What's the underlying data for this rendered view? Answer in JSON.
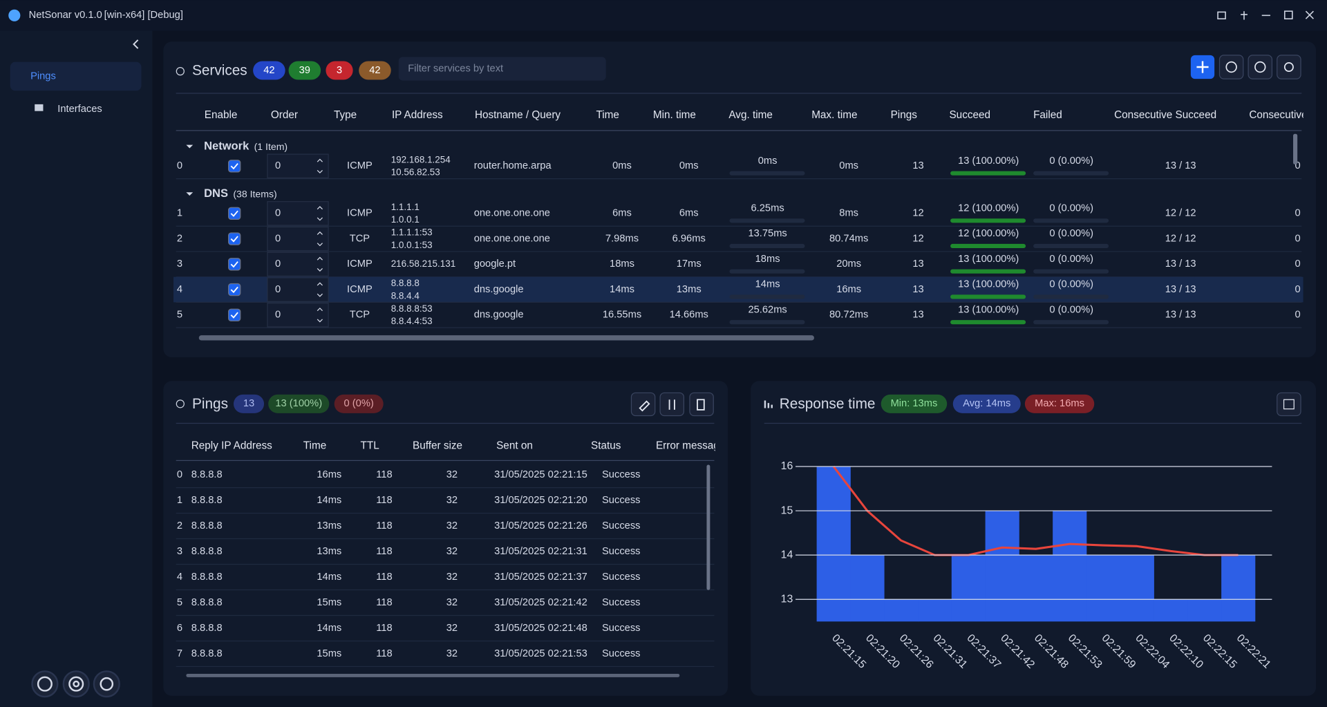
{
  "window": {
    "title": "NetSonar v0.1.0",
    "build": "[win-x64] [Debug]"
  },
  "sidebar": {
    "items": [
      "Pings",
      "Interfaces"
    ]
  },
  "services": {
    "title": "Services",
    "badges": [
      "42",
      "39",
      "3",
      "42"
    ],
    "filter_placeholder": "Filter services by text",
    "columns": [
      "Enable",
      "Order",
      "Type",
      "IP Address",
      "Hostname / Query",
      "Time",
      "Min. time",
      "Avg. time",
      "Max. time",
      "Pings",
      "Succeed",
      "Failed",
      "Consecutive Succeed",
      "Consecutive"
    ],
    "groups": [
      {
        "name": "Network",
        "count": "(1 Item)",
        "rows": [
          {
            "index": "0",
            "enabled": true,
            "order": "0",
            "type": "ICMP",
            "ip": [
              "192.168.1.254",
              "10.56.82.53"
            ],
            "host": "router.home.arpa",
            "time": "0ms",
            "min": "0ms",
            "avg": "0ms",
            "max": "0ms",
            "pings": "13",
            "succeed": "13 (100.00%)",
            "failed": "0 (0.00%)",
            "consecutive_succeed": "13 / 13",
            "consecutive": "0"
          }
        ]
      },
      {
        "name": "DNS",
        "count": "(38 Items)",
        "rows": [
          {
            "index": "1",
            "enabled": true,
            "order": "0",
            "type": "ICMP",
            "ip": [
              "1.1.1.1",
              "1.0.0.1"
            ],
            "host": "one.one.one.one",
            "time": "6ms",
            "min": "6ms",
            "avg": "6.25ms",
            "max": "8ms",
            "pings": "12",
            "succeed": "12 (100.00%)",
            "failed": "0 (0.00%)",
            "consecutive_succeed": "12 / 12",
            "consecutive": "0"
          },
          {
            "index": "2",
            "enabled": true,
            "order": "0",
            "type": "TCP",
            "ip": [
              "1.1.1.1:53",
              "1.0.0.1:53"
            ],
            "host": "one.one.one.one",
            "time": "7.98ms",
            "min": "6.96ms",
            "avg": "13.75ms",
            "max": "80.74ms",
            "pings": "12",
            "succeed": "12 (100.00%)",
            "failed": "0 (0.00%)",
            "consecutive_succeed": "12 / 12",
            "consecutive": "0"
          },
          {
            "index": "3",
            "enabled": true,
            "order": "0",
            "type": "ICMP",
            "ip": [
              "216.58.215.131"
            ],
            "host": "google.pt",
            "time": "18ms",
            "min": "17ms",
            "avg": "18ms",
            "max": "20ms",
            "pings": "13",
            "succeed": "13 (100.00%)",
            "failed": "0 (0.00%)",
            "consecutive_succeed": "13 / 13",
            "consecutive": "0"
          },
          {
            "index": "4",
            "enabled": true,
            "order": "0",
            "type": "ICMP",
            "ip": [
              "8.8.8.8",
              "8.8.4.4"
            ],
            "host": "dns.google",
            "time": "14ms",
            "min": "13ms",
            "avg": "14ms",
            "max": "16ms",
            "pings": "13",
            "succeed": "13 (100.00%)",
            "failed": "0 (0.00%)",
            "consecutive_succeed": "13 / 13",
            "consecutive": "0"
          },
          {
            "index": "5",
            "enabled": true,
            "order": "0",
            "type": "TCP",
            "ip": [
              "8.8.8.8:53",
              "8.8.4.4:53"
            ],
            "host": "dns.google",
            "time": "16.55ms",
            "min": "14.66ms",
            "avg": "25.62ms",
            "max": "80.72ms",
            "pings": "13",
            "succeed": "13 (100.00%)",
            "failed": "0 (0.00%)",
            "consecutive_succeed": "13 / 13",
            "consecutive": "0"
          }
        ]
      }
    ]
  },
  "pings": {
    "title": "Pings",
    "badges": [
      "13",
      "13 (100%)",
      "0 (0%)"
    ],
    "columns": [
      "Reply IP Address",
      "Time",
      "TTL",
      "Buffer size",
      "Sent on",
      "Status",
      "Error message"
    ],
    "rows": [
      [
        "0",
        "8.8.8.8",
        "16ms",
        "118",
        "32",
        "31/05/2025 02:21:15",
        "Success"
      ],
      [
        "1",
        "8.8.8.8",
        "14ms",
        "118",
        "32",
        "31/05/2025 02:21:20",
        "Success"
      ],
      [
        "2",
        "8.8.8.8",
        "13ms",
        "118",
        "32",
        "31/05/2025 02:21:26",
        "Success"
      ],
      [
        "3",
        "8.8.8.8",
        "13ms",
        "118",
        "32",
        "31/05/2025 02:21:31",
        "Success"
      ],
      [
        "4",
        "8.8.8.8",
        "14ms",
        "118",
        "32",
        "31/05/2025 02:21:37",
        "Success"
      ],
      [
        "5",
        "8.8.8.8",
        "15ms",
        "118",
        "32",
        "31/05/2025 02:21:42",
        "Success"
      ],
      [
        "6",
        "8.8.8.8",
        "14ms",
        "118",
        "32",
        "31/05/2025 02:21:48",
        "Success"
      ],
      [
        "7",
        "8.8.8.8",
        "15ms",
        "118",
        "32",
        "31/05/2025 02:21:53",
        "Success"
      ]
    ]
  },
  "chart_data": {
    "type": "bar",
    "title": "Response time",
    "annotations": [
      "Min: 13ms",
      "Avg: 14ms",
      "Max: 16ms"
    ],
    "categories": [
      "02:21:15",
      "02:21:20",
      "02:21:26",
      "02:21:31",
      "02:21:37",
      "02:21:42",
      "02:21:48",
      "02:21:53",
      "02:21:59",
      "02:22:04",
      "02:22:10",
      "02:22:15",
      "02:22:21"
    ],
    "series": [
      {
        "type": "bar",
        "color": "#2d5fe6",
        "values": [
          16,
          14,
          13,
          13,
          14,
          15,
          14,
          15,
          14,
          14,
          13,
          13,
          14
        ]
      },
      {
        "type": "line",
        "color": "#e8453c",
        "values": [
          16,
          15,
          14.33,
          14,
          14,
          14.17,
          14.14,
          14.25,
          14.22,
          14.2,
          14.09,
          14,
          14
        ]
      }
    ],
    "ylim": [
      12.5,
      16
    ],
    "yticks": [
      13,
      14,
      15,
      16
    ],
    "grid": true
  }
}
